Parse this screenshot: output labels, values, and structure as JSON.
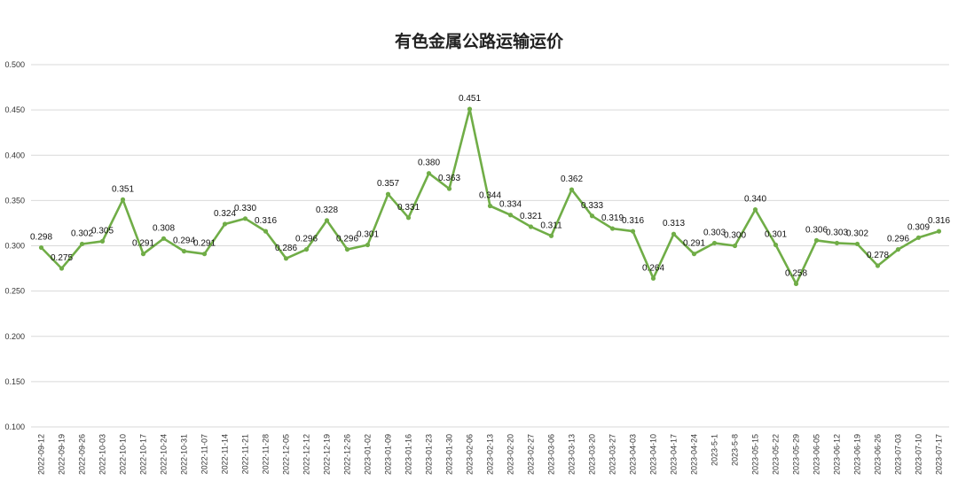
{
  "chart_data": {
    "type": "line",
    "title": "有色金属公路运输运价",
    "xlabel": "",
    "ylabel": "",
    "ylim": [
      0.1,
      0.5
    ],
    "yticks": [
      "0.100",
      "0.150",
      "0.200",
      "0.250",
      "0.300",
      "0.350",
      "0.400",
      "0.450",
      "0.500"
    ],
    "grid": "horizontal",
    "legend": "none",
    "line_color": "#70ad47",
    "categories": [
      "2022-09-12",
      "2022-09-19",
      "2022-09-26",
      "2022-10-03",
      "2022-10-10",
      "2022-10-17",
      "2022-10-24",
      "2022-10-31",
      "2022-11-07",
      "2022-11-14",
      "2022-11-21",
      "2022-11-28",
      "2022-12-05",
      "2022-12-12",
      "2022-12-19",
      "2022-12-26",
      "2023-01-02",
      "2023-01-09",
      "2023-01-16",
      "2023-01-23",
      "2023-01-30",
      "2023-02-06",
      "2023-02-13",
      "2023-02-20",
      "2023-02-27",
      "2023-03-06",
      "2023-03-13",
      "2023-03-20",
      "2023-03-27",
      "2023-04-03",
      "2023-04-10",
      "2023-04-17",
      "2023-04-24",
      "2023-5-1",
      "2023-5-8",
      "2023-05-15",
      "2023-05-22",
      "2023-05-29",
      "2023-06-05",
      "2023-06-12",
      "2023-06-19",
      "2023-06-26",
      "2023-07-03",
      "2023-07-10",
      "2023-07-17"
    ],
    "values": [
      0.298,
      0.275,
      0.302,
      0.305,
      0.351,
      0.291,
      0.308,
      0.294,
      0.291,
      0.324,
      0.33,
      0.316,
      0.286,
      0.296,
      0.328,
      0.296,
      0.301,
      0.357,
      0.331,
      0.38,
      0.363,
      0.451,
      0.344,
      0.334,
      0.321,
      0.311,
      0.362,
      0.333,
      0.319,
      0.316,
      0.264,
      0.313,
      0.291,
      0.303,
      0.3,
      0.34,
      0.301,
      0.258,
      0.306,
      0.303,
      0.302,
      0.278,
      0.296,
      0.309,
      0.316
    ],
    "data_labels": [
      "0.298",
      "0.275",
      "0.302",
      "0.305",
      "0.351",
      "0.291",
      "0.308",
      "0.294",
      "0.291",
      "0.324",
      "0.330",
      "0.316",
      "0.286",
      "0.296",
      "0.328",
      "0.296",
      "0.301",
      "0.357",
      "0.331",
      "0.380",
      "0.363",
      "0.451",
      "0.344",
      "0.334",
      "0.321",
      "0.311",
      "0.362",
      "0.333",
      "0.319",
      "0.316",
      "0.264",
      "0.313",
      "0.291",
      "0.303",
      "0.300",
      "0.340",
      "0.301",
      "0.258",
      "0.306",
      "0.303",
      "0.302",
      "0.278",
      "0.296",
      "0.309",
      "0.316"
    ]
  }
}
